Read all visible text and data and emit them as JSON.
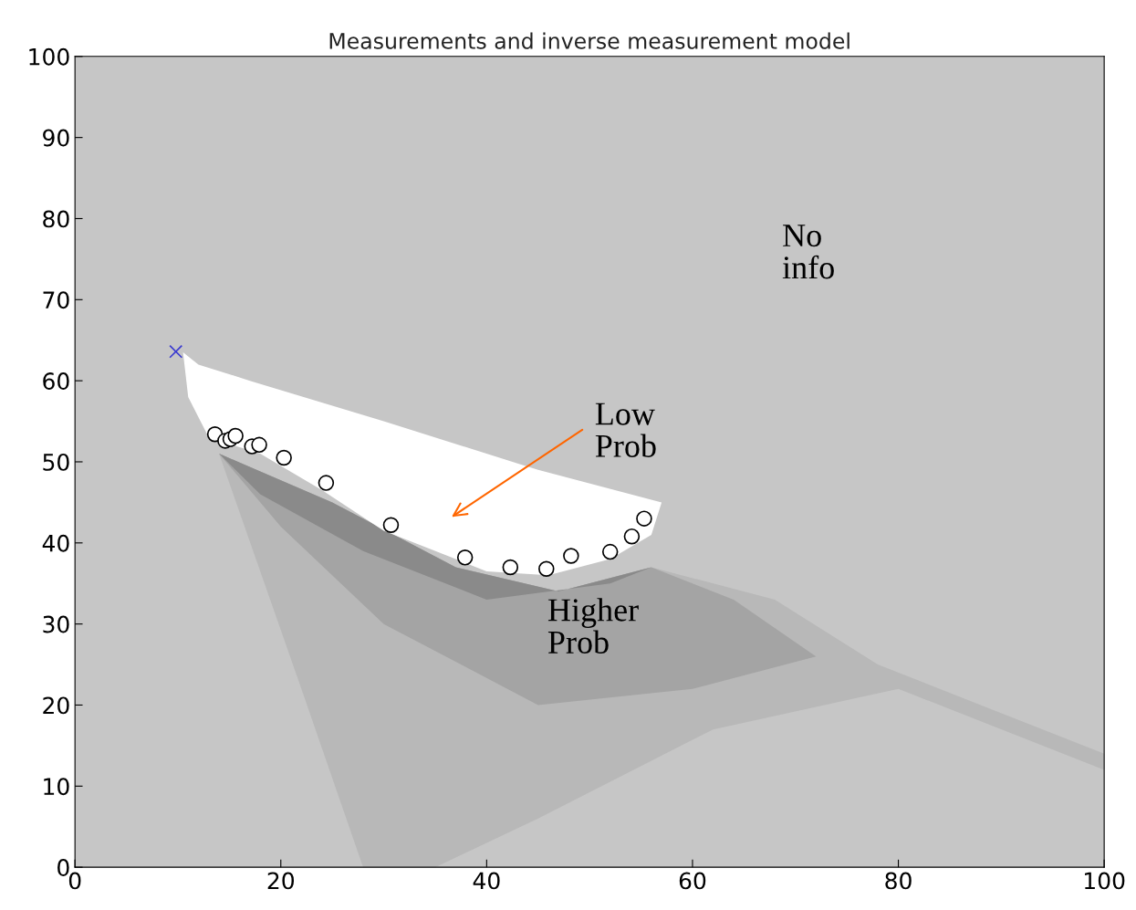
{
  "chart_data": {
    "type": "scatter",
    "title": "Measurements and inverse measurement model",
    "xlim": [
      0,
      100
    ],
    "ylim": [
      0,
      100
    ],
    "xticks": [
      0,
      20,
      40,
      60,
      80,
      100
    ],
    "yticks": [
      0,
      10,
      20,
      30,
      40,
      50,
      60,
      70,
      80,
      90,
      100
    ],
    "grid": false,
    "series": [
      {
        "marker": "circle",
        "color": "#ffffff",
        "x": [
          13.6,
          14.6,
          15.1,
          15.6,
          17.2,
          17.9,
          20.3,
          24.4,
          30.7,
          37.9,
          42.3,
          45.8,
          48.2,
          52.0,
          54.1,
          55.3
        ],
        "values": [
          53.4,
          52.6,
          52.8,
          53.2,
          51.9,
          52.1,
          50.5,
          47.4,
          42.2,
          38.2,
          37.0,
          36.8,
          38.4,
          38.9,
          40.8,
          43.0
        ]
      },
      {
        "marker": "cross",
        "color": "#3a3ad0",
        "x": [
          9.8
        ],
        "values": [
          63.6
        ]
      }
    ],
    "annotations": [
      "No\ninfo",
      "Low\nProb",
      "Higher\nProb"
    ]
  }
}
